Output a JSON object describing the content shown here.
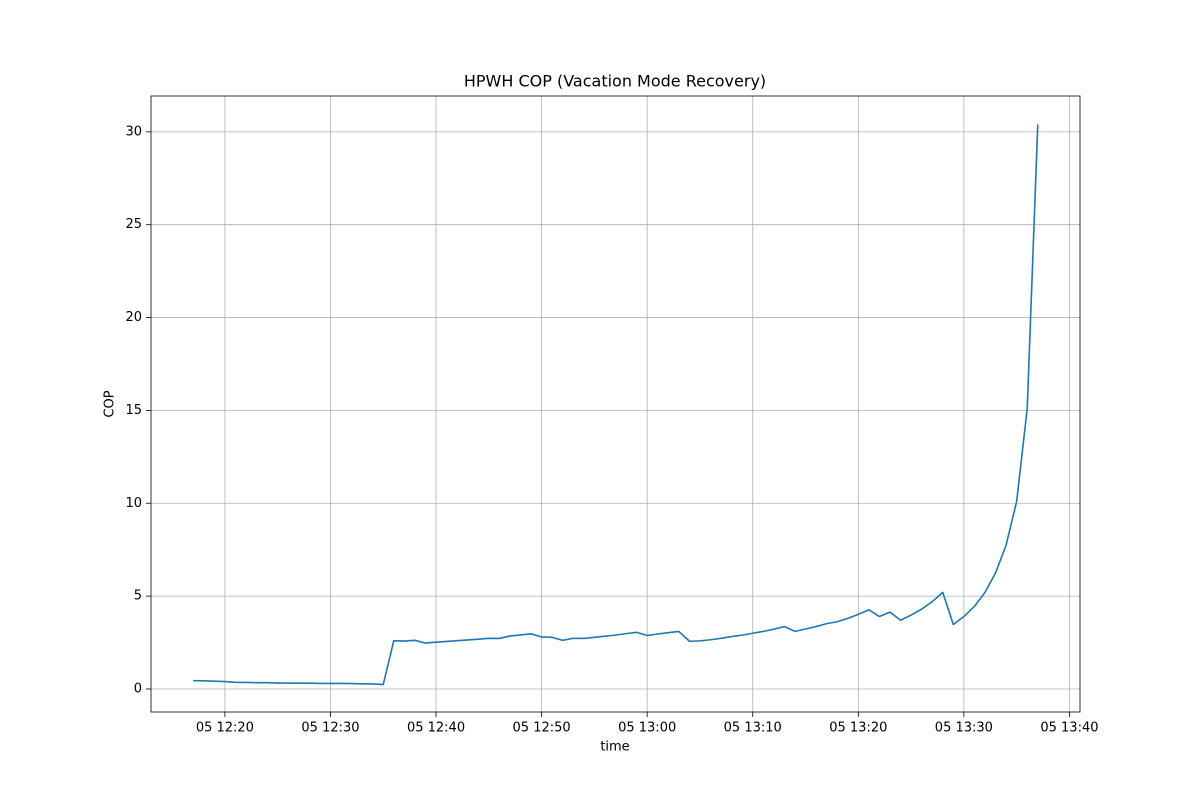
{
  "chart_data": {
    "type": "line",
    "title": "HPWH COP (Vacation Mode Recovery)",
    "xlabel": "time",
    "ylabel": "COP",
    "x": [
      "05 12:17",
      "05 12:18",
      "05 12:19",
      "05 12:20",
      "05 12:21",
      "05 12:22",
      "05 12:23",
      "05 12:24",
      "05 12:25",
      "05 12:26",
      "05 12:27",
      "05 12:28",
      "05 12:29",
      "05 12:30",
      "05 12:31",
      "05 12:32",
      "05 12:33",
      "05 12:34",
      "05 12:35",
      "05 12:36",
      "05 12:37",
      "05 12:38",
      "05 12:39",
      "05 12:40",
      "05 12:41",
      "05 12:42",
      "05 12:43",
      "05 12:44",
      "05 12:45",
      "05 12:46",
      "05 12:47",
      "05 12:48",
      "05 12:49",
      "05 12:50",
      "05 12:51",
      "05 12:52",
      "05 12:53",
      "05 12:54",
      "05 12:55",
      "05 12:56",
      "05 12:57",
      "05 12:58",
      "05 12:59",
      "05 13:00",
      "05 13:01",
      "05 13:02",
      "05 13:03",
      "05 13:04",
      "05 13:05",
      "05 13:06",
      "05 13:07",
      "05 13:08",
      "05 13:09",
      "05 13:10",
      "05 13:11",
      "05 13:12",
      "05 13:13",
      "05 13:14",
      "05 13:15",
      "05 13:16",
      "05 13:17",
      "05 13:18",
      "05 13:19",
      "05 13:20",
      "05 13:21",
      "05 13:22",
      "05 13:23",
      "05 13:24",
      "05 13:25",
      "05 13:26",
      "05 13:27",
      "05 13:28",
      "05 13:29",
      "05 13:30",
      "05 13:31",
      "05 13:32",
      "05 13:33",
      "05 13:34",
      "05 13:35",
      "05 13:36",
      "05 13:37"
    ],
    "series": [
      {
        "name": "COP",
        "color": "#1f77b4",
        "values": [
          0.45,
          0.44,
          0.42,
          0.4,
          0.36,
          0.35,
          0.34,
          0.34,
          0.32,
          0.32,
          0.31,
          0.31,
          0.3,
          0.3,
          0.3,
          0.29,
          0.28,
          0.27,
          0.24,
          2.6,
          2.58,
          2.62,
          2.47,
          2.52,
          2.56,
          2.6,
          2.64,
          2.68,
          2.73,
          2.72,
          2.85,
          2.91,
          2.97,
          2.8,
          2.78,
          2.62,
          2.73,
          2.72,
          2.78,
          2.84,
          2.9,
          2.98,
          3.05,
          2.88,
          2.96,
          3.03,
          3.1,
          2.57,
          2.59,
          2.65,
          2.73,
          2.82,
          2.9,
          3.0,
          3.1,
          3.22,
          3.36,
          3.1,
          3.23,
          3.36,
          3.52,
          3.62,
          3.8,
          4.02,
          4.26,
          3.9,
          4.14,
          3.7,
          3.98,
          4.3,
          4.7,
          5.2,
          3.47,
          3.9,
          4.45,
          5.2,
          6.25,
          7.75,
          10.1,
          15.1,
          30.4
        ]
      }
    ],
    "xlim": [
      "05 12:13",
      "05 13:41"
    ],
    "xticks": [
      "05 12:20",
      "05 12:30",
      "05 12:40",
      "05 12:50",
      "05 13:00",
      "05 13:10",
      "05 13:20",
      "05 13:30",
      "05 13:40"
    ],
    "ylim": [
      -1.24,
      31.93
    ],
    "yticks": [
      0,
      5,
      10,
      15,
      20,
      25,
      30
    ],
    "grid": true
  }
}
